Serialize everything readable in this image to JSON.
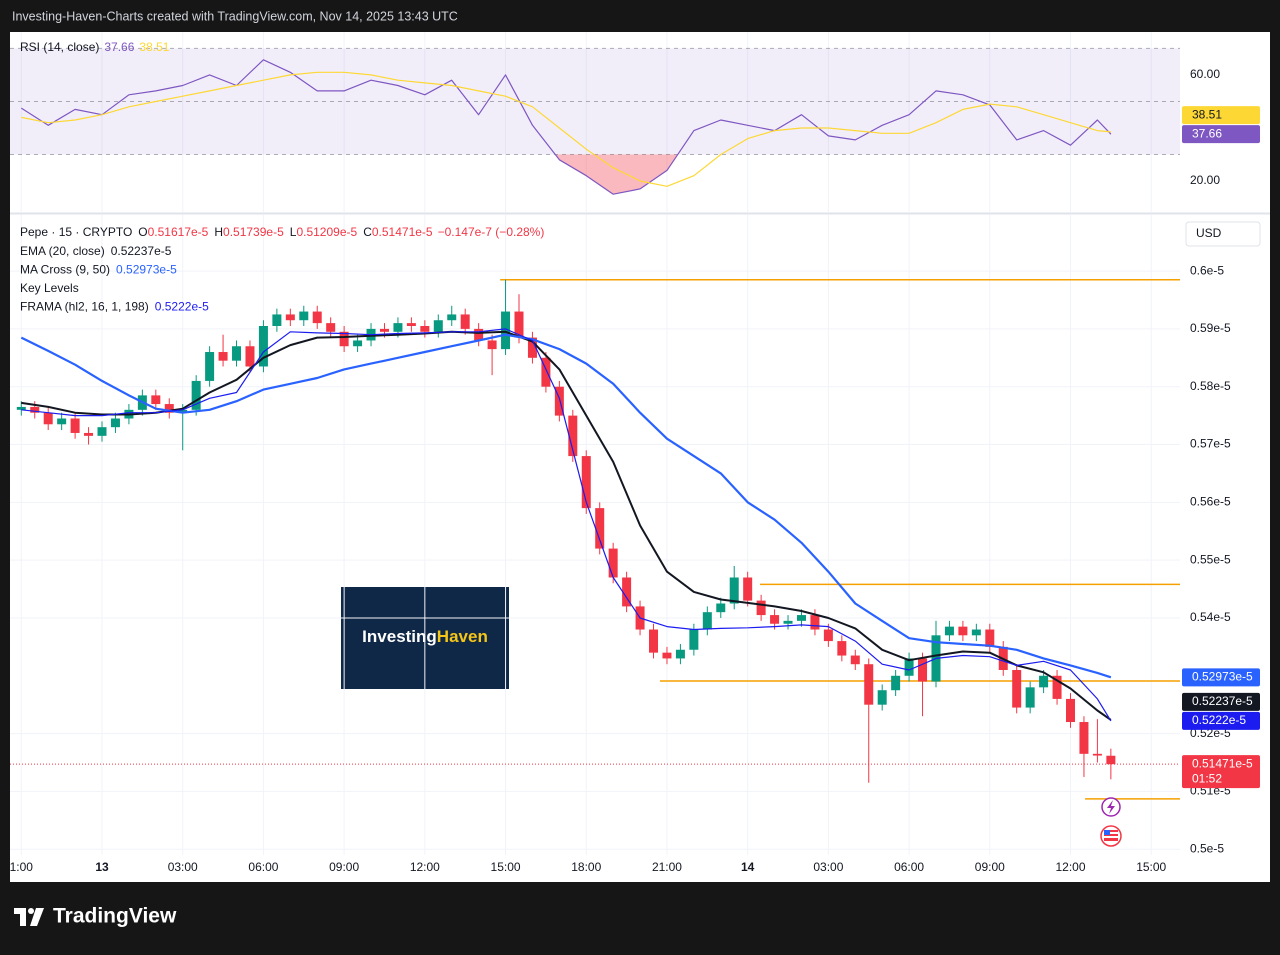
{
  "header": "Investing-Haven-Charts created with TradingView.com, Nov 14, 2025 13:43 UTC",
  "footer": "TradingView",
  "watermark": [
    "Investing",
    "Haven"
  ],
  "chart_data": [
    {
      "type": "line",
      "title": "RSI (14, close)",
      "xlim": [
        -3.42,
        40.07
      ],
      "ylim": [
        8.3,
        76.2
      ],
      "yticks": [
        {
          "value": 60,
          "label": "60.00"
        },
        {
          "value": 20,
          "label": "20.00"
        }
      ],
      "bands": [
        70,
        50,
        30
      ],
      "band_color": "#7e57c2",
      "oversold_color": "#f23645",
      "x": [
        -3,
        -2,
        -1,
        0,
        1,
        2,
        3,
        4,
        5,
        6,
        7,
        8,
        9,
        10,
        11,
        12,
        13,
        14,
        15,
        16,
        17,
        18,
        19,
        20,
        21,
        22,
        23,
        24,
        25,
        26,
        27,
        28,
        29,
        30,
        31,
        32,
        33,
        34,
        35,
        36,
        37,
        37.5
      ],
      "series": [
        {
          "color": "#7e57c2",
          "width": 1.2,
          "legend_value": "37.66",
          "values": [
            47.5,
            41,
            47,
            45,
            52.5,
            54,
            56,
            60,
            56,
            65.7,
            61,
            54,
            54,
            58,
            56,
            52.5,
            58,
            45,
            60,
            41,
            28,
            22,
            15,
            17,
            24,
            39,
            43,
            41,
            39,
            45,
            37,
            35.5,
            41,
            45,
            54,
            52.5,
            48.7,
            35.5,
            39,
            33.5,
            43,
            37.66
          ]
        },
        {
          "color": "#fdd835",
          "width": 1.2,
          "legend_value": "38.51",
          "values": [
            44,
            42,
            43,
            45,
            48,
            50,
            52,
            54,
            56,
            58,
            60,
            61,
            61,
            60,
            58,
            57,
            56,
            54,
            52,
            48,
            40,
            32,
            25,
            20,
            18,
            22,
            30,
            36,
            39,
            40,
            40,
            39,
            38,
            38,
            42,
            47,
            49,
            48,
            45,
            42,
            39,
            38.51
          ]
        }
      ]
    },
    {
      "type": "candlestick",
      "symbol": "Pepe · 15 · CRYPTO",
      "currency": "USD",
      "ohlc_labels": [
        "O",
        "H",
        "L",
        "C"
      ],
      "ohlc_values": [
        "0.51617e-5",
        "0.51739e-5",
        "0.51209e-5",
        "0.51471e-5"
      ],
      "change": "−0.147e-7 (−0.28%)",
      "countdown": "01:52",
      "xlim": [
        -3.42,
        40.07
      ],
      "ylim": [
        0.499,
        0.6097
      ],
      "xticks": [
        {
          "value": -3,
          "label": "1:00"
        },
        {
          "value": 0,
          "label": "13",
          "bold": true
        },
        {
          "value": 3,
          "label": "03:00"
        },
        {
          "value": 6,
          "label": "06:00"
        },
        {
          "value": 9,
          "label": "09:00"
        },
        {
          "value": 12,
          "label": "12:00"
        },
        {
          "value": 15,
          "label": "15:00"
        },
        {
          "value": 18,
          "label": "18:00"
        },
        {
          "value": 21,
          "label": "21:00"
        },
        {
          "value": 24,
          "label": "14",
          "bold": true
        },
        {
          "value": 27,
          "label": "03:00"
        },
        {
          "value": 30,
          "label": "06:00"
        },
        {
          "value": 33,
          "label": "09:00"
        },
        {
          "value": 36,
          "label": "12:00"
        },
        {
          "value": 39,
          "label": "15:00"
        }
      ],
      "yticks": [
        {
          "value": 0.6,
          "label": "0.6e-5"
        },
        {
          "value": 0.59,
          "label": "0.59e-5"
        },
        {
          "value": 0.58,
          "label": "0.58e-5"
        },
        {
          "value": 0.57,
          "label": "0.57e-5"
        },
        {
          "value": 0.56,
          "label": "0.56e-5"
        },
        {
          "value": 0.55,
          "label": "0.55e-5"
        },
        {
          "value": 0.54,
          "label": "0.54e-5"
        },
        {
          "value": 0.52,
          "label": "0.52e-5"
        },
        {
          "value": 0.51,
          "label": "0.51e-5"
        },
        {
          "value": 0.5,
          "label": "0.5e-5"
        }
      ],
      "grid": true,
      "up_color": "#089981",
      "down_color": "#f23645",
      "candles": {
        "x": [
          -3,
          -2.5,
          -2,
          -1.5,
          -1,
          -0.5,
          0,
          0.5,
          1,
          1.5,
          2,
          2.5,
          3,
          3.5,
          4,
          4.5,
          5,
          5.5,
          6,
          6.5,
          7,
          7.5,
          8,
          8.5,
          9,
          9.5,
          10,
          10.5,
          11,
          11.5,
          12,
          12.5,
          13,
          13.5,
          14,
          14.5,
          15,
          15.5,
          16,
          16.5,
          17,
          17.5,
          18,
          18.5,
          19,
          19.5,
          20,
          20.5,
          21,
          21.5,
          22,
          22.5,
          23,
          23.5,
          24,
          24.5,
          25,
          25.5,
          26,
          26.5,
          27,
          27.5,
          28,
          28.5,
          29,
          29.5,
          30,
          30.5,
          31,
          31.5,
          32,
          32.5,
          33,
          33.5,
          34,
          34.5,
          35,
          35.5,
          36,
          36.5,
          37,
          37.5
        ],
        "open": [
          0.576,
          0.5765,
          0.5755,
          0.5735,
          0.5745,
          0.572,
          0.5715,
          0.573,
          0.5745,
          0.576,
          0.5785,
          0.577,
          0.5755,
          0.576,
          0.581,
          0.586,
          0.5845,
          0.587,
          0.5835,
          0.5905,
          0.5925,
          0.5915,
          0.593,
          0.591,
          0.5895,
          0.587,
          0.588,
          0.59,
          0.5895,
          0.591,
          0.5905,
          0.5895,
          0.5915,
          0.5925,
          0.59,
          0.588,
          0.5865,
          0.593,
          0.5885,
          0.585,
          0.58,
          0.575,
          0.568,
          0.559,
          0.552,
          0.547,
          0.542,
          0.538,
          0.534,
          0.533,
          0.5345,
          0.538,
          0.541,
          0.5425,
          0.547,
          0.543,
          0.5405,
          0.539,
          0.5395,
          0.5405,
          0.538,
          0.536,
          0.5335,
          0.532,
          0.525,
          0.5275,
          0.53,
          0.533,
          0.529,
          0.537,
          0.5385,
          0.537,
          0.538,
          0.535,
          0.531,
          0.5245,
          0.528,
          0.53,
          0.526,
          0.522,
          0.5165,
          0.51617
        ],
        "high": [
          0.5775,
          0.5775,
          0.5765,
          0.5755,
          0.5755,
          0.573,
          0.574,
          0.5755,
          0.577,
          0.5795,
          0.5795,
          0.578,
          0.577,
          0.582,
          0.587,
          0.589,
          0.588,
          0.588,
          0.5915,
          0.5935,
          0.5935,
          0.594,
          0.594,
          0.592,
          0.5905,
          0.589,
          0.591,
          0.591,
          0.592,
          0.592,
          0.5915,
          0.5925,
          0.594,
          0.5935,
          0.591,
          0.589,
          0.5985,
          0.596,
          0.5895,
          0.586,
          0.581,
          0.576,
          0.569,
          0.56,
          0.553,
          0.548,
          0.543,
          0.539,
          0.535,
          0.5355,
          0.539,
          0.542,
          0.5435,
          0.549,
          0.548,
          0.544,
          0.5415,
          0.5405,
          0.5415,
          0.5415,
          0.539,
          0.537,
          0.5345,
          0.533,
          0.5285,
          0.531,
          0.534,
          0.534,
          0.5395,
          0.5395,
          0.5395,
          0.539,
          0.539,
          0.536,
          0.532,
          0.529,
          0.531,
          0.531,
          0.527,
          0.523,
          0.5225,
          0.51739
        ],
        "low": [
          0.575,
          0.5745,
          0.5725,
          0.5725,
          0.571,
          0.57,
          0.5705,
          0.572,
          0.5735,
          0.575,
          0.576,
          0.5745,
          0.569,
          0.575,
          0.58,
          0.5835,
          0.5835,
          0.5825,
          0.5825,
          0.5895,
          0.5905,
          0.5905,
          0.59,
          0.5885,
          0.586,
          0.586,
          0.587,
          0.5885,
          0.5885,
          0.5895,
          0.5885,
          0.5885,
          0.5905,
          0.589,
          0.587,
          0.582,
          0.5855,
          0.5875,
          0.584,
          0.579,
          0.574,
          0.567,
          0.558,
          0.551,
          0.546,
          0.541,
          0.537,
          0.533,
          0.532,
          0.532,
          0.5335,
          0.537,
          0.54,
          0.5415,
          0.542,
          0.5395,
          0.538,
          0.538,
          0.5385,
          0.537,
          0.535,
          0.5325,
          0.531,
          0.5115,
          0.524,
          0.5265,
          0.529,
          0.523,
          0.528,
          0.536,
          0.536,
          0.536,
          0.534,
          0.53,
          0.5235,
          0.5235,
          0.527,
          0.525,
          0.521,
          0.5125,
          0.515,
          0.51209
        ],
        "close": [
          0.5765,
          0.5755,
          0.5735,
          0.5745,
          0.572,
          0.5715,
          0.573,
          0.5745,
          0.576,
          0.5785,
          0.577,
          0.5755,
          0.576,
          0.581,
          0.586,
          0.5845,
          0.587,
          0.5835,
          0.5905,
          0.5925,
          0.5915,
          0.593,
          0.591,
          0.5895,
          0.587,
          0.588,
          0.59,
          0.5895,
          0.591,
          0.5905,
          0.5895,
          0.5915,
          0.5925,
          0.59,
          0.588,
          0.5865,
          0.593,
          0.5885,
          0.585,
          0.58,
          0.575,
          0.568,
          0.559,
          0.552,
          0.547,
          0.542,
          0.538,
          0.534,
          0.533,
          0.5345,
          0.538,
          0.541,
          0.5425,
          0.547,
          0.543,
          0.5405,
          0.539,
          0.5395,
          0.5405,
          0.538,
          0.536,
          0.5335,
          0.532,
          0.525,
          0.5275,
          0.53,
          0.533,
          0.529,
          0.537,
          0.5385,
          0.537,
          0.538,
          0.535,
          0.531,
          0.5245,
          0.528,
          0.53,
          0.526,
          0.522,
          0.5165,
          0.5162,
          0.51471
        ]
      },
      "x": [
        -3,
        -2,
        -1,
        0,
        1,
        2,
        3,
        4,
        5,
        6,
        7,
        8,
        9,
        10,
        11,
        12,
        13,
        14,
        15,
        16,
        17,
        18,
        19,
        20,
        21,
        22,
        23,
        24,
        25,
        26,
        27,
        28,
        29,
        30,
        31,
        32,
        33,
        34,
        35,
        36,
        37,
        37.5
      ],
      "series": [
        {
          "name": "EMA (20, close)",
          "legend_value": "0.52237e-5",
          "color": "#131722",
          "width": 2,
          "values": [
            0.5772,
            0.5765,
            0.5755,
            0.5752,
            0.5752,
            0.5755,
            0.5762,
            0.579,
            0.5812,
            0.585,
            0.5872,
            0.5885,
            0.5886,
            0.5888,
            0.589,
            0.5892,
            0.5895,
            0.5893,
            0.5895,
            0.5878,
            0.583,
            0.575,
            0.567,
            0.556,
            0.548,
            0.5445,
            0.5432,
            0.5426,
            0.542,
            0.5412,
            0.54,
            0.5382,
            0.5345,
            0.5327,
            0.5335,
            0.5342,
            0.534,
            0.5318,
            0.5306,
            0.5278,
            0.524,
            0.52237
          ]
        },
        {
          "name": "MA Cross (9, 50)",
          "legend_value": "0.52973e-5",
          "color": "#2962ff",
          "width": 2.2,
          "values": [
            0.5885,
            0.5862,
            0.5838,
            0.581,
            0.5785,
            0.5762,
            0.5755,
            0.576,
            0.5775,
            0.5795,
            0.5805,
            0.5815,
            0.583,
            0.584,
            0.585,
            0.586,
            0.587,
            0.588,
            0.589,
            0.5882,
            0.5865,
            0.584,
            0.5805,
            0.5755,
            0.571,
            0.568,
            0.565,
            0.56,
            0.557,
            0.553,
            0.548,
            0.5425,
            0.5395,
            0.5365,
            0.5358,
            0.5355,
            0.5352,
            0.5345,
            0.533,
            0.5318,
            0.5305,
            0.52973
          ]
        },
        {
          "name": "FRAMA (hl2, 16, 1, 198)",
          "legend_value": "0.5222e-5",
          "color": "#1c1cf0",
          "width": 1.2,
          "values": [
            0.576,
            0.5755,
            0.575,
            0.575,
            0.5755,
            0.5755,
            0.576,
            0.578,
            0.579,
            0.586,
            0.5895,
            0.5893,
            0.5892,
            0.589,
            0.5892,
            0.5893,
            0.5895,
            0.5895,
            0.59,
            0.588,
            0.578,
            0.56,
            0.547,
            0.54,
            0.5385,
            0.538,
            0.5382,
            0.5383,
            0.5385,
            0.5388,
            0.5385,
            0.536,
            0.532,
            0.531,
            0.533,
            0.5335,
            0.5333,
            0.5318,
            0.5325,
            0.531,
            0.526,
            0.5222
          ]
        }
      ],
      "key_levels": {
        "name": "Key Levels",
        "color": "#f5a000",
        "levels": [
          {
            "value": 0.5985,
            "from": 14.8
          },
          {
            "value": 0.5458,
            "from": 24.46
          },
          {
            "value": 0.5291,
            "from": 20.74
          },
          {
            "value": 0.5087,
            "from": 36.54
          }
        ]
      }
    }
  ]
}
